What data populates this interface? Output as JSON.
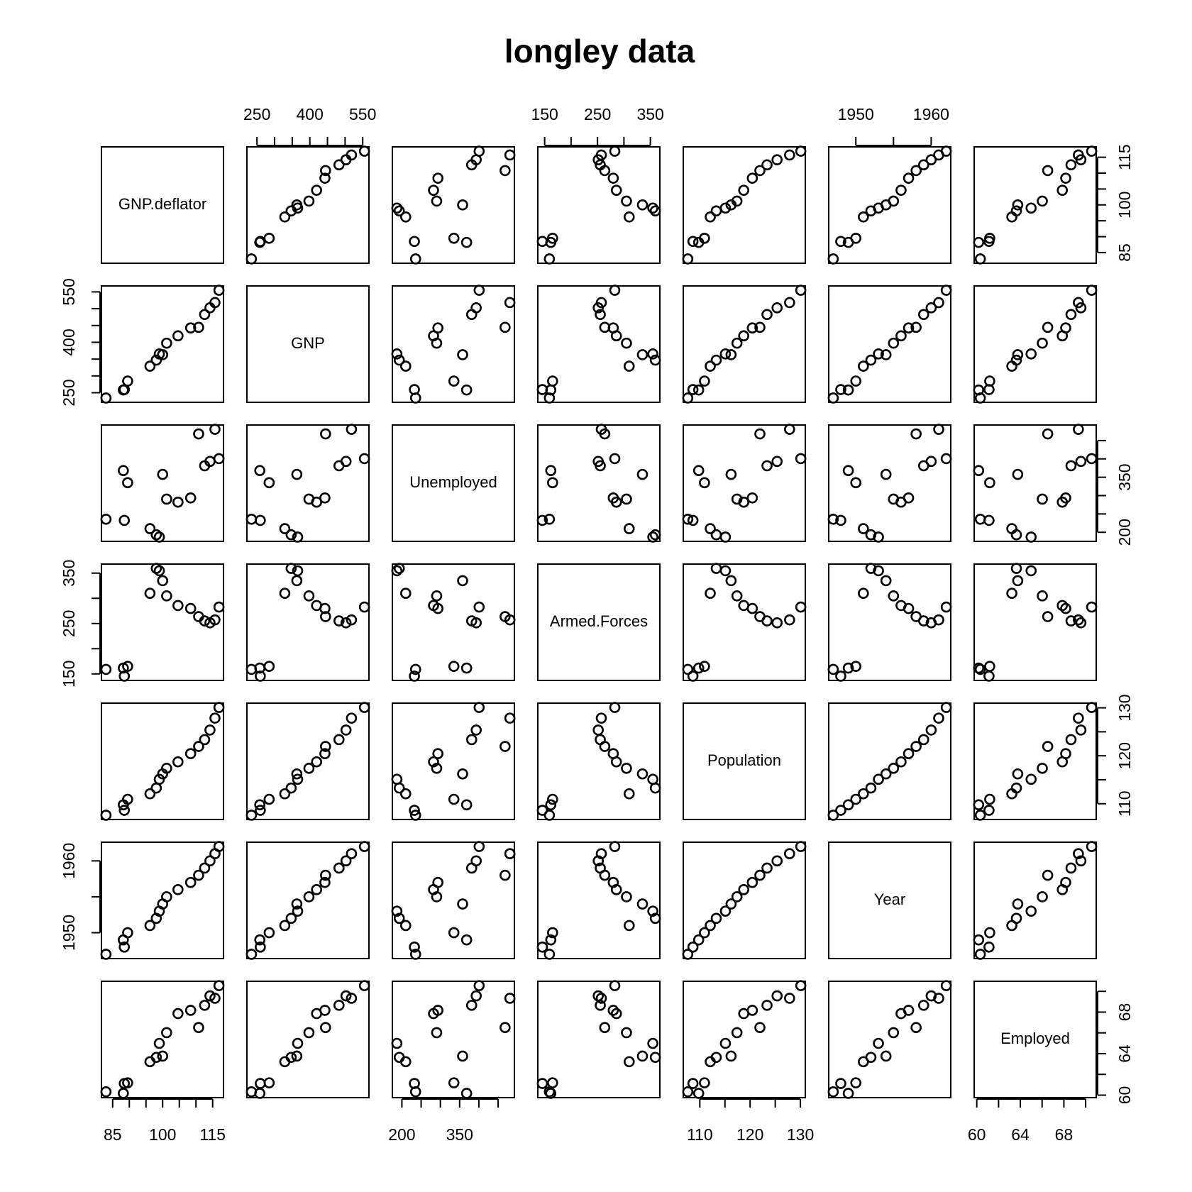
{
  "chart_data": {
    "type": "scatter-matrix",
    "title": "longley data",
    "point_color": "#000000",
    "variables": [
      {
        "name": "GNP.deflator",
        "values": [
          83.0,
          88.5,
          88.2,
          89.5,
          96.2,
          98.1,
          99.0,
          100.0,
          101.2,
          104.6,
          108.4,
          110.8,
          112.6,
          114.2,
          115.7,
          116.9
        ],
        "lim": [
          81.64,
          118.26
        ],
        "ticks": [
          85,
          100,
          115
        ],
        "minor_ticks": [
          90,
          95,
          105,
          110
        ]
      },
      {
        "name": "GNP",
        "values": [
          234.289,
          259.426,
          258.054,
          284.599,
          328.975,
          346.999,
          365.385,
          363.112,
          397.469,
          419.18,
          442.769,
          444.546,
          482.704,
          502.601,
          518.173,
          554.894
        ],
        "lim": [
          221.46,
          567.72
        ],
        "ticks": [
          250,
          400,
          550
        ],
        "minor_ticks": [
          300,
          350,
          450,
          500
        ]
      },
      {
        "name": "Unemployed",
        "values": [
          235.6,
          232.5,
          368.2,
          335.1,
          209.9,
          193.2,
          187.0,
          357.8,
          290.4,
          282.2,
          293.6,
          468.1,
          381.3,
          393.1,
          480.6,
          400.7
        ],
        "lim": [
          175.26,
          492.34
        ],
        "ticks": [
          200,
          350
        ],
        "minor_ticks": [
          250,
          300,
          400,
          450
        ]
      },
      {
        "name": "Armed.Forces",
        "values": [
          159.0,
          145.6,
          161.6,
          165.0,
          309.9,
          359.4,
          354.7,
          335.0,
          304.8,
          285.7,
          279.8,
          263.7,
          255.2,
          251.4,
          257.2,
          282.7
        ],
        "lim": [
          137.05,
          367.95
        ],
        "ticks": [
          150,
          250,
          350
        ],
        "minor_ticks": [
          200,
          300
        ]
      },
      {
        "name": "Population",
        "values": [
          107.608,
          108.632,
          109.773,
          110.929,
          112.075,
          113.27,
          115.094,
          116.219,
          117.388,
          118.734,
          120.445,
          121.95,
          123.366,
          125.368,
          127.852,
          130.081
        ],
        "lim": [
          106.71,
          130.98
        ],
        "ticks": [
          110,
          120,
          130
        ],
        "minor_ticks": [
          115,
          125
        ]
      },
      {
        "name": "Year",
        "values": [
          1947,
          1948,
          1949,
          1950,
          1951,
          1952,
          1953,
          1954,
          1955,
          1956,
          1957,
          1958,
          1959,
          1960,
          1961,
          1962
        ],
        "lim": [
          1946.4,
          1962.6
        ],
        "ticks": [
          1950,
          1960
        ],
        "minor_ticks": [
          1955
        ]
      },
      {
        "name": "Employed",
        "values": [
          60.323,
          61.122,
          60.171,
          61.187,
          63.221,
          63.639,
          64.989,
          63.761,
          66.019,
          67.857,
          68.169,
          66.513,
          68.655,
          69.564,
          69.331,
          70.551
        ],
        "lim": [
          59.76,
          70.97
        ],
        "ticks": [
          60,
          64,
          68
        ],
        "minor_ticks": [
          62,
          66,
          70
        ]
      }
    ]
  }
}
